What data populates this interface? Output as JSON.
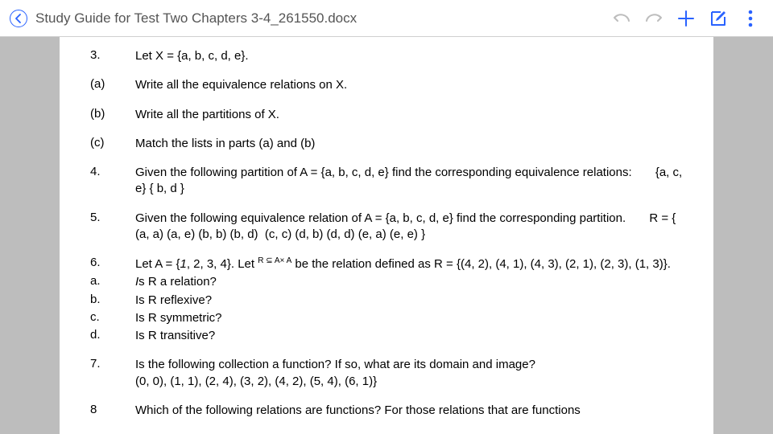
{
  "toolbar": {
    "title": "Study Guide for Test Two Chapters 3-4_261550.docx"
  },
  "colors": {
    "accent": "#2962ff",
    "muted_icon": "#bdbdbd",
    "text": "#000000",
    "title_text": "#555555",
    "page_bg": "#ffffff",
    "viewport_bg": "#bdbdbd",
    "divider": "#d0d0d0"
  },
  "content": {
    "items": [
      {
        "n": "3.",
        "t": "Let X = {a, b, c, d, e}."
      },
      {
        "n": "(a)",
        "t": "Write all the equivalence relations on X."
      },
      {
        "n": "(b)",
        "t": "Write all the partitions of X."
      },
      {
        "n": "(c)",
        "t": "Match the lists in parts (a) and (b)"
      },
      {
        "n": "4.",
        "t": "Given the following partition of A = {a, b, c, d, e} find the corresponding equivalence relations:       {a, c, e} { b, d }"
      },
      {
        "n": "5.",
        "t": "Given the following equivalence relation of A = {a, b, c, d, e} find the corresponding partition.       R = { (a, a) (a, e) (b, b) (b, d)  (c, c) (d, b) (d, d) (e, a) (e, e) }"
      },
      {
        "n": "6.",
        "t": "",
        "special": "six"
      },
      {
        "n": "a.",
        "t": "Is R a relation?",
        "tight": true,
        "italicFirst": true
      },
      {
        "n": "b.",
        "t": "Is R reflexive?",
        "tight": true
      },
      {
        "n": "c.",
        "t": "Is R symmetric?",
        "tight": true
      },
      {
        "n": "d.",
        "t": "Is R transitive?"
      },
      {
        "n": "7.",
        "t": "Is the following collection a function? If so, what are its domain and image?\n(0, 0), (1, 1), (2, 4), (3, 2), (4, 2), (5, 4), (6, 1)}"
      },
      {
        "n": "8",
        "t": "Which of the following relations are functions? For those relations that are functions"
      }
    ],
    "six_parts": {
      "pre": "Let A = {",
      "one_italic": "1",
      "mid1": ", 2, 3, 4}. Let ",
      "sup": "R ⊆ A× A",
      "mid2": " be the relation defined as R = {(4, 2), (4, 1), (4, 3), (2, 1), (2, 3), (1, 3)}."
    }
  }
}
